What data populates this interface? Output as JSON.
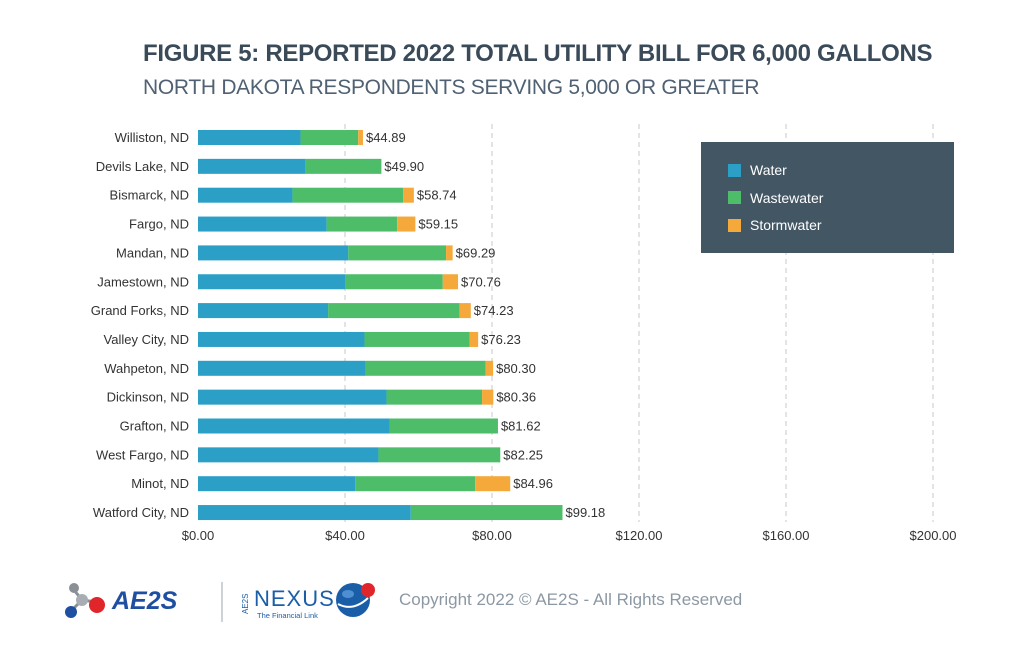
{
  "title": "FIGURE 5: REPORTED 2022 TOTAL UTILITY BILL FOR 6,000 GALLONS",
  "subtitle": "NORTH DAKOTA RESPONDENTS SERVING 5,000 OR GREATER",
  "chart_data": {
    "type": "bar",
    "orientation": "horizontal",
    "stacked": true,
    "title": "FIGURE 5: REPORTED 2022 TOTAL UTILITY BILL FOR 6,000 GALLONS",
    "subtitle": "NORTH DAKOTA RESPONDENTS SERVING 5,000 OR GREATER",
    "categories": [
      "Williston, ND",
      "Devils Lake, ND",
      "Bismarck, ND",
      "Fargo, ND",
      "Mandan, ND",
      "Jamestown, ND",
      "Grand Forks, ND",
      "Valley City, ND",
      "Wahpeton, ND",
      "Dickinson, ND",
      "Grafton, ND",
      "West Fargo, ND",
      "Minot, ND",
      "Watford City, ND"
    ],
    "series": [
      {
        "name": "Water",
        "color": "#2c9fc7",
        "values": [
          27.9,
          29.3,
          25.7,
          35.0,
          40.9,
          40.2,
          35.4,
          45.3,
          45.6,
          51.3,
          52.1,
          49.1,
          42.8,
          57.9
        ]
      },
      {
        "name": "Wastewater",
        "color": "#4dbd6a",
        "values": [
          15.7,
          20.6,
          30.1,
          19.2,
          26.6,
          26.4,
          35.8,
          28.6,
          32.7,
          26.0,
          29.52,
          33.15,
          32.6,
          41.28
        ]
      },
      {
        "name": "Stormwater",
        "color": "#f4a93a",
        "values": [
          1.29,
          0.0,
          2.94,
          4.95,
          1.79,
          4.16,
          3.03,
          2.33,
          2.0,
          3.06,
          0.0,
          0.0,
          9.56,
          0.0
        ]
      }
    ],
    "totals_labels": [
      "$44.89",
      "$49.90",
      "$58.74",
      "$59.15",
      "$69.29",
      "$70.76",
      "$74.23",
      "$76.23",
      "$80.30",
      "$80.36",
      "$81.62",
      "$82.25",
      "$84.96",
      "$99.18"
    ],
    "xlim": [
      0,
      200
    ],
    "x_ticks": [
      0,
      40,
      80,
      120,
      160,
      200
    ],
    "x_tick_labels": [
      "$0.00",
      "$40.00",
      "$80.00",
      "$120.00",
      "$160.00",
      "$200.00"
    ],
    "grid": "vertical dashed",
    "legend_position": "top-right"
  },
  "footer": {
    "logo_ae2s_text": "AE2S",
    "logo_nexus_small": "AE2S",
    "logo_nexus_text": "NEXUS",
    "logo_nexus_tagline": "The Financial Link",
    "copyright": "Copyright 2022 © AE2S - All Rights Reserved",
    "colors": {
      "ae2s_blue": "#1f4fa0",
      "ae2s_red": "#e0262b",
      "nexus_blue": "#1a5ea8",
      "divider": "#9aa4ad"
    }
  }
}
